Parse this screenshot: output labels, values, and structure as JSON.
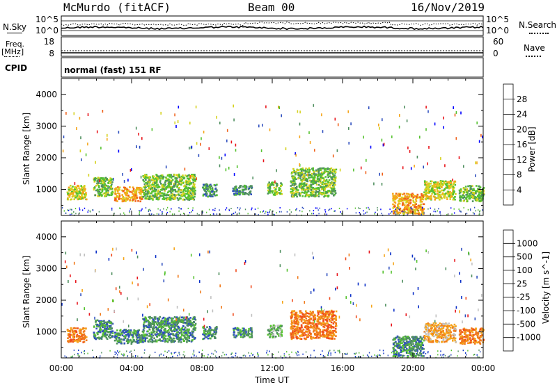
{
  "header": {
    "title_left": "McMurdo (fitACF)",
    "title_center": "Beam 00",
    "title_right": "16/Nov/2019"
  },
  "panels": {
    "nsky": {
      "label": "N.Sky",
      "ticks": [
        "10^5",
        "10^0"
      ],
      "right_ticks": [
        "10^5",
        "10^0"
      ],
      "right_label": "N.Search"
    },
    "freq": {
      "label_line1": "Freq.",
      "label_line2": "[MHz]",
      "ticks": [
        "18",
        "8"
      ],
      "right_ticks": [
        "60",
        "0"
      ],
      "right_label": "Nave"
    },
    "cpid": {
      "label": "CPID",
      "text": "normal (fast) 151 RF"
    }
  },
  "chart_data": [
    {
      "type": "heatmap",
      "name": "power",
      "ylabel": "Slant Range [km]",
      "y_ticks": [
        1000,
        2000,
        3000,
        4000
      ],
      "ylim": [
        180,
        4500
      ],
      "x_ticks": [
        "00:00",
        "04:00",
        "08:00",
        "12:00",
        "16:00",
        "20:00",
        "00:00"
      ],
      "xlim_hours": [
        0,
        24
      ],
      "colorbar": {
        "label": "Power [dB]",
        "ticks": [
          "4",
          "8",
          "12",
          "16",
          "20",
          "24",
          "28"
        ],
        "colors": [
          "#0000ff",
          "#2f4fbf",
          "#4f8f5f",
          "#55c22f",
          "#d6d21f",
          "#f5a51a",
          "#f0621b",
          "#e8151b"
        ]
      },
      "echo_bands": [
        {
          "t0": 0.3,
          "t1": 1.4,
          "r0": 700,
          "r1": 1150,
          "level": 4
        },
        {
          "t0": 1.8,
          "t1": 2.9,
          "r0": 800,
          "r1": 1400,
          "level": 3
        },
        {
          "t0": 3.0,
          "t1": 4.6,
          "r0": 650,
          "r1": 1100,
          "level": 5
        },
        {
          "t0": 4.6,
          "t1": 7.6,
          "r0": 700,
          "r1": 1500,
          "level": 3
        },
        {
          "t0": 8.0,
          "t1": 8.8,
          "r0": 800,
          "r1": 1200,
          "level": 2
        },
        {
          "t0": 9.7,
          "t1": 10.8,
          "r0": 850,
          "r1": 1150,
          "level": 2
        },
        {
          "t0": 11.7,
          "t1": 12.5,
          "r0": 850,
          "r1": 1250,
          "level": 3
        },
        {
          "t0": 13.0,
          "t1": 15.6,
          "r0": 800,
          "r1": 1700,
          "level": 3
        },
        {
          "t0": 18.8,
          "t1": 20.6,
          "r0": 250,
          "r1": 900,
          "level": 5
        },
        {
          "t0": 20.6,
          "t1": 22.4,
          "r0": 700,
          "r1": 1300,
          "level": 4
        },
        {
          "t0": 22.6,
          "t1": 24.0,
          "r0": 650,
          "r1": 1150,
          "level": 3
        }
      ]
    },
    {
      "type": "heatmap",
      "name": "velocity",
      "ylabel": "Slant Range [km]",
      "y_ticks": [
        1000,
        2000,
        3000,
        4000
      ],
      "ylim": [
        180,
        4500
      ],
      "x_ticks": [
        "00:00",
        "04:00",
        "08:00",
        "12:00",
        "16:00",
        "20:00",
        "00:00"
      ],
      "xlim_hours": [
        0,
        24
      ],
      "xlabel": "Time UT",
      "colorbar": {
        "label": "Velocity [m s^-1]",
        "ticks": [
          "1000",
          "500",
          "100",
          "25",
          "-25",
          "-100",
          "-500",
          "-1000"
        ],
        "colors": [
          "#0a2fc7",
          "#2f4fbf",
          "#4f8f5f",
          "#55c22f",
          "#c0c0c0",
          "#f5a51a",
          "#f07a1b",
          "#f04a1b",
          "#e8151b"
        ]
      },
      "echo_bands": [
        {
          "t0": 0.3,
          "t1": 1.4,
          "r0": 700,
          "r1": 1150,
          "level": 6
        },
        {
          "t0": 1.8,
          "t1": 2.9,
          "r0": 800,
          "r1": 1400,
          "level": 2
        },
        {
          "t0": 3.0,
          "t1": 4.6,
          "r0": 650,
          "r1": 1100,
          "level": 2
        },
        {
          "t0": 4.6,
          "t1": 7.6,
          "r0": 700,
          "r1": 1500,
          "level": 2
        },
        {
          "t0": 8.0,
          "t1": 8.8,
          "r0": 800,
          "r1": 1200,
          "level": 2
        },
        {
          "t0": 9.7,
          "t1": 10.8,
          "r0": 850,
          "r1": 1150,
          "level": 2
        },
        {
          "t0": 11.7,
          "t1": 12.5,
          "r0": 850,
          "r1": 1250,
          "level": 3
        },
        {
          "t0": 13.0,
          "t1": 15.6,
          "r0": 800,
          "r1": 1700,
          "level": 6
        },
        {
          "t0": 18.8,
          "t1": 20.6,
          "r0": 250,
          "r1": 900,
          "level": 2
        },
        {
          "t0": 20.6,
          "t1": 22.4,
          "r0": 700,
          "r1": 1300,
          "level": 5
        },
        {
          "t0": 22.6,
          "t1": 24.0,
          "r0": 650,
          "r1": 1150,
          "level": 6
        }
      ]
    }
  ]
}
